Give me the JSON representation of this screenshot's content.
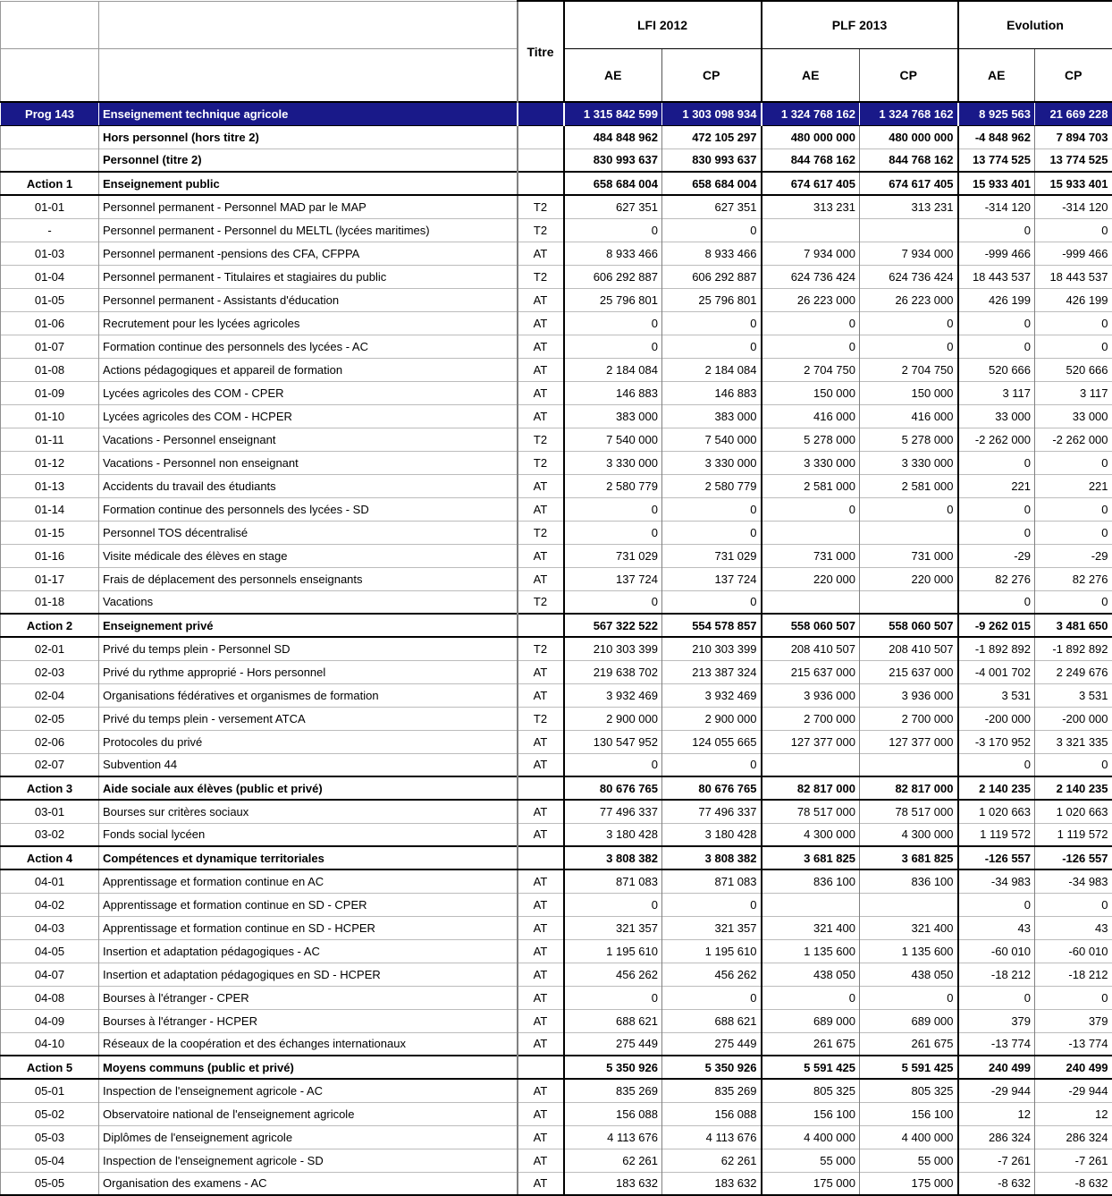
{
  "colors": {
    "prog_row_bg": "#191989",
    "prog_row_text": "#ffffff",
    "grid_light": "#bcbcbc",
    "grid_dark": "#000000"
  },
  "header": {
    "titre": "Titre",
    "groups": [
      "LFI 2012",
      "PLF 2013",
      "Evolution"
    ],
    "subcols": [
      "AE",
      "CP",
      "AE",
      "CP",
      "AE",
      "CP"
    ]
  },
  "rows": [
    {
      "code": "Prog 143",
      "label": "Enseignement technique agricole",
      "titre": "",
      "style": "prog",
      "values": [
        "1 315 842 599",
        "1 303 098 934",
        "1 324 768 162",
        "1 324 768 162",
        "8 925 563",
        "21 669 228"
      ]
    },
    {
      "code": "",
      "label": "Hors personnel (hors titre 2)",
      "titre": "",
      "style": "summary",
      "values": [
        "484 848 962",
        "472 105 297",
        "480 000 000",
        "480 000 000",
        "-4 848 962",
        "7 894 703"
      ]
    },
    {
      "code": "",
      "label": "Personnel (titre 2)",
      "titre": "",
      "style": "summary",
      "values": [
        "830 993 637",
        "830 993 637",
        "844 768 162",
        "844 768 162",
        "13 774 525",
        "13 774 525"
      ]
    },
    {
      "code": "Action 1",
      "label": "Enseignement public",
      "titre": "",
      "style": "action",
      "values": [
        "658 684 004",
        "658 684 004",
        "674 617 405",
        "674 617 405",
        "15 933 401",
        "15 933 401"
      ]
    },
    {
      "code": "01-01",
      "label": "Personnel permanent - Personnel MAD par le MAP",
      "titre": "T2",
      "style": "detail",
      "values": [
        "627 351",
        "627 351",
        "313 231",
        "313 231",
        "-314 120",
        "-314 120"
      ]
    },
    {
      "code": "-",
      "label": "Personnel permanent - Personnel du MELTL (lycées maritimes)",
      "titre": "T2",
      "style": "detail",
      "values": [
        "0",
        "0",
        "",
        "",
        "0",
        "0"
      ]
    },
    {
      "code": "01-03",
      "label": "Personnel permanent -pensions des CFA, CFPPA",
      "titre": "AT",
      "style": "detail",
      "values": [
        "8 933 466",
        "8 933 466",
        "7 934 000",
        "7 934 000",
        "-999 466",
        "-999 466"
      ]
    },
    {
      "code": "01-04",
      "label": "Personnel permanent - Titulaires et stagiaires du public",
      "titre": "T2",
      "style": "detail",
      "values": [
        "606 292 887",
        "606 292 887",
        "624 736 424",
        "624 736 424",
        "18 443 537",
        "18 443 537"
      ]
    },
    {
      "code": "01-05",
      "label": "Personnel permanent - Assistants d'éducation",
      "titre": "AT",
      "style": "detail",
      "values": [
        "25 796 801",
        "25 796 801",
        "26 223 000",
        "26 223 000",
        "426 199",
        "426 199"
      ]
    },
    {
      "code": "01-06",
      "label": "Recrutement pour les lycées agricoles",
      "titre": "AT",
      "style": "detail",
      "values": [
        "0",
        "0",
        "0",
        "0",
        "0",
        "0"
      ]
    },
    {
      "code": "01-07",
      "label": "Formation continue des personnels des lycées - AC",
      "titre": "AT",
      "style": "detail",
      "values": [
        "0",
        "0",
        "0",
        "0",
        "0",
        "0"
      ]
    },
    {
      "code": "01-08",
      "label": "Actions pédagogiques et appareil de formation",
      "titre": "AT",
      "style": "detail",
      "values": [
        "2 184 084",
        "2 184 084",
        "2 704 750",
        "2 704 750",
        "520 666",
        "520 666"
      ]
    },
    {
      "code": "01-09",
      "label": "Lycées agricoles des COM - CPER",
      "titre": "AT",
      "style": "detail",
      "values": [
        "146 883",
        "146 883",
        "150 000",
        "150 000",
        "3 117",
        "3 117"
      ]
    },
    {
      "code": "01-10",
      "label": "Lycées agricoles des COM - HCPER",
      "titre": "AT",
      "style": "detail",
      "values": [
        "383 000",
        "383 000",
        "416 000",
        "416 000",
        "33 000",
        "33 000"
      ]
    },
    {
      "code": "01-11",
      "label": "Vacations - Personnel enseignant",
      "titre": "T2",
      "style": "detail",
      "values": [
        "7 540 000",
        "7 540 000",
        "5 278 000",
        "5 278 000",
        "-2 262 000",
        "-2 262 000"
      ]
    },
    {
      "code": "01-12",
      "label": "Vacations - Personnel non enseignant",
      "titre": "T2",
      "style": "detail",
      "values": [
        "3 330 000",
        "3 330 000",
        "3 330 000",
        "3 330 000",
        "0",
        "0"
      ]
    },
    {
      "code": "01-13",
      "label": "Accidents du travail des étudiants",
      "titre": "AT",
      "style": "detail",
      "values": [
        "2 580 779",
        "2 580 779",
        "2 581 000",
        "2 581 000",
        "221",
        "221"
      ]
    },
    {
      "code": "01-14",
      "label": "Formation continue des personnels des lycées - SD",
      "titre": "AT",
      "style": "detail",
      "values": [
        "0",
        "0",
        "0",
        "0",
        "0",
        "0"
      ]
    },
    {
      "code": "01-15",
      "label": "Personnel TOS décentralisé",
      "titre": "T2",
      "style": "detail",
      "values": [
        "0",
        "0",
        "",
        "",
        "0",
        "0"
      ]
    },
    {
      "code": "01-16",
      "label": "Visite médicale des élèves en stage",
      "titre": "AT",
      "style": "detail",
      "values": [
        "731 029",
        "731 029",
        "731 000",
        "731 000",
        "-29",
        "-29"
      ]
    },
    {
      "code": "01-17",
      "label": "Frais de déplacement des personnels enseignants",
      "titre": "AT",
      "style": "detail",
      "values": [
        "137 724",
        "137 724",
        "220 000",
        "220 000",
        "82 276",
        "82 276"
      ]
    },
    {
      "code": "01-18",
      "label": "Vacations",
      "titre": "T2",
      "style": "detail",
      "values": [
        "0",
        "0",
        "",
        "",
        "0",
        "0"
      ]
    },
    {
      "code": "Action 2",
      "label": "Enseignement privé",
      "titre": "",
      "style": "action",
      "values": [
        "567 322 522",
        "554 578 857",
        "558 060 507",
        "558 060 507",
        "-9 262 015",
        "3 481 650"
      ]
    },
    {
      "code": "02-01",
      "label": "Privé du temps plein - Personnel SD",
      "titre": "T2",
      "style": "detail",
      "values": [
        "210 303 399",
        "210 303 399",
        "208 410 507",
        "208 410 507",
        "-1 892 892",
        "-1 892 892"
      ]
    },
    {
      "code": "02-03",
      "label": "Privé du rythme approprié - Hors personnel",
      "titre": "AT",
      "style": "detail",
      "values": [
        "219 638 702",
        "213 387 324",
        "215 637 000",
        "215 637 000",
        "-4 001 702",
        "2 249 676"
      ]
    },
    {
      "code": "02-04",
      "label": "Organisations fédératives et organismes de formation",
      "titre": "AT",
      "style": "detail",
      "values": [
        "3 932 469",
        "3 932 469",
        "3 936 000",
        "3 936 000",
        "3 531",
        "3 531"
      ]
    },
    {
      "code": "02-05",
      "label": "Privé du temps plein - versement ATCA",
      "titre": "T2",
      "style": "detail",
      "values": [
        "2 900 000",
        "2 900 000",
        "2 700 000",
        "2 700 000",
        "-200 000",
        "-200 000"
      ]
    },
    {
      "code": "02-06",
      "label": "Protocoles du privé",
      "titre": "AT",
      "style": "detail",
      "values": [
        "130 547 952",
        "124 055 665",
        "127 377 000",
        "127 377 000",
        "-3 170 952",
        "3 321 335"
      ]
    },
    {
      "code": "02-07",
      "label": "Subvention 44",
      "titre": "AT",
      "style": "detail",
      "values": [
        "0",
        "0",
        "",
        "",
        "0",
        "0"
      ]
    },
    {
      "code": "Action 3",
      "label": "Aide sociale aux élèves (public et privé)",
      "titre": "",
      "style": "action",
      "values": [
        "80 676 765",
        "80 676 765",
        "82 817 000",
        "82 817 000",
        "2 140 235",
        "2 140 235"
      ]
    },
    {
      "code": "03-01",
      "label": "Bourses sur critères sociaux",
      "titre": "AT",
      "style": "detail",
      "values": [
        "77 496 337",
        "77 496 337",
        "78 517 000",
        "78 517 000",
        "1 020 663",
        "1 020 663"
      ]
    },
    {
      "code": "03-02",
      "label": "Fonds social lycéen",
      "titre": "AT",
      "style": "detail",
      "values": [
        "3 180 428",
        "3 180 428",
        "4 300 000",
        "4 300 000",
        "1 119 572",
        "1 119 572"
      ]
    },
    {
      "code": "Action 4",
      "label": "Compétences et dynamique territoriales",
      "titre": "",
      "style": "action",
      "values": [
        "3 808 382",
        "3 808 382",
        "3 681 825",
        "3 681 825",
        "-126 557",
        "-126 557"
      ]
    },
    {
      "code": "04-01",
      "label": "Apprentissage et formation continue en AC",
      "titre": "AT",
      "style": "detail",
      "values": [
        "871 083",
        "871 083",
        "836 100",
        "836 100",
        "-34 983",
        "-34 983"
      ]
    },
    {
      "code": "04-02",
      "label": "Apprentissage et formation continue en SD - CPER",
      "titre": "AT",
      "style": "detail",
      "values": [
        "0",
        "0",
        "",
        "",
        "0",
        "0"
      ]
    },
    {
      "code": "04-03",
      "label": "Apprentissage et formation continue en SD - HCPER",
      "titre": "AT",
      "style": "detail",
      "values": [
        "321 357",
        "321 357",
        "321 400",
        "321 400",
        "43",
        "43"
      ]
    },
    {
      "code": "04-05",
      "label": "Insertion et adaptation pédagogiques - AC",
      "titre": "AT",
      "style": "detail",
      "values": [
        "1 195 610",
        "1 195 610",
        "1 135 600",
        "1 135 600",
        "-60 010",
        "-60 010"
      ]
    },
    {
      "code": "04-07",
      "label": "Insertion et adaptation pédagogiques en SD - HCPER",
      "titre": "AT",
      "style": "detail",
      "values": [
        "456 262",
        "456 262",
        "438 050",
        "438 050",
        "-18 212",
        "-18 212"
      ]
    },
    {
      "code": "04-08",
      "label": "Bourses à l'étranger - CPER",
      "titre": "AT",
      "style": "detail",
      "values": [
        "0",
        "0",
        "0",
        "0",
        "0",
        "0"
      ]
    },
    {
      "code": "04-09",
      "label": "Bourses à l'étranger - HCPER",
      "titre": "AT",
      "style": "detail",
      "values": [
        "688 621",
        "688 621",
        "689 000",
        "689 000",
        "379",
        "379"
      ]
    },
    {
      "code": "04-10",
      "label": "Réseaux de la coopération et des échanges internationaux",
      "titre": "AT",
      "style": "detail",
      "values": [
        "275 449",
        "275 449",
        "261 675",
        "261 675",
        "-13 774",
        "-13 774"
      ]
    },
    {
      "code": "Action 5",
      "label": "Moyens communs (public et privé)",
      "titre": "",
      "style": "action",
      "values": [
        "5 350 926",
        "5 350 926",
        "5 591 425",
        "5 591 425",
        "240 499",
        "240 499"
      ]
    },
    {
      "code": "05-01",
      "label": "Inspection de l'enseignement agricole - AC",
      "titre": "AT",
      "style": "detail",
      "values": [
        "835 269",
        "835 269",
        "805 325",
        "805 325",
        "-29 944",
        "-29 944"
      ]
    },
    {
      "code": "05-02",
      "label": "Observatoire national de l'enseignement agricole",
      "titre": "AT",
      "style": "detail",
      "values": [
        "156 088",
        "156 088",
        "156 100",
        "156 100",
        "12",
        "12"
      ]
    },
    {
      "code": "05-03",
      "label": "Diplômes de l'enseignement agricole",
      "titre": "AT",
      "style": "detail",
      "values": [
        "4 113 676",
        "4 113 676",
        "4 400 000",
        "4 400 000",
        "286 324",
        "286 324"
      ]
    },
    {
      "code": "05-04",
      "label": "Inspection de l'enseignement agricole - SD",
      "titre": "AT",
      "style": "detail",
      "values": [
        "62 261",
        "62 261",
        "55 000",
        "55 000",
        "-7 261",
        "-7 261"
      ]
    },
    {
      "code": "05-05",
      "label": "Organisation des examens - AC",
      "titre": "AT",
      "style": "detail",
      "values": [
        "183 632",
        "183 632",
        "175 000",
        "175 000",
        "-8 632",
        "-8 632"
      ]
    }
  ]
}
